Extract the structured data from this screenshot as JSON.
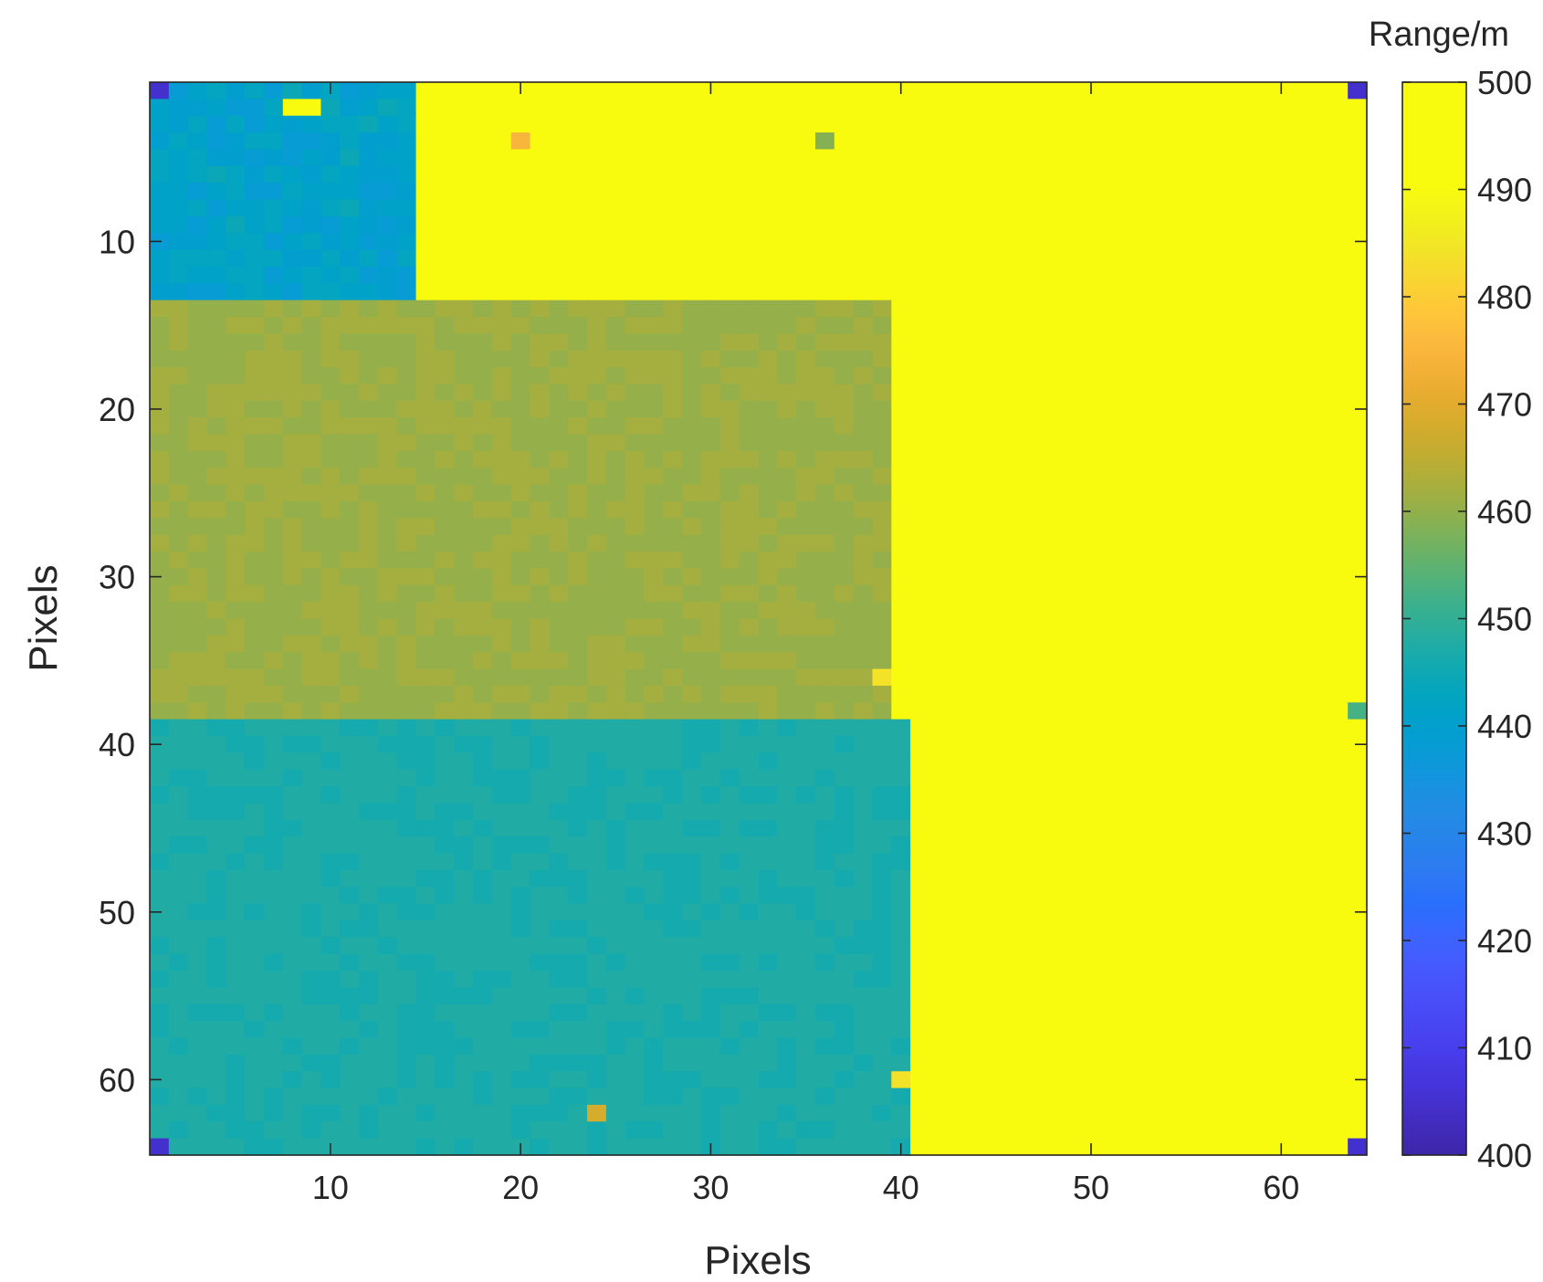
{
  "chart_data": {
    "type": "heatmap",
    "title": "",
    "xlabel": "Pixels",
    "ylabel": "Pixels",
    "xlim": [
      0.5,
      64.5
    ],
    "ylim": [
      0.5,
      64.5
    ],
    "y_reversed": true,
    "x_ticks": [
      10,
      20,
      30,
      40,
      50,
      60
    ],
    "y_ticks": [
      10,
      20,
      30,
      40,
      50,
      60
    ],
    "colorbar": {
      "title": "Range/m",
      "limits": [
        400,
        500
      ],
      "ticks": [
        400,
        410,
        420,
        430,
        440,
        450,
        460,
        470,
        480,
        490,
        500
      ],
      "colormap": "parula"
    },
    "grid": false,
    "description_of_regions": [
      {
        "region": "columns 1-40, rows 15-38",
        "value_m": 461
      },
      {
        "region": "columns 1-41, rows 39-64",
        "value_m": 447
      },
      {
        "region": "columns 41-64, all rows",
        "value_m": 497
      },
      {
        "region": "columns 1-14, rows 1-13",
        "value_m": 441
      },
      {
        "region": "columns 15-40, rows 1-13",
        "value_m": 497
      }
    ],
    "spot_values": [
      {
        "x": 1,
        "y": 1,
        "value_m": 404
      },
      {
        "x": 64,
        "y": 1,
        "value_m": 404
      },
      {
        "x": 1,
        "y": 64,
        "value_m": 404
      },
      {
        "x": 64,
        "y": 64,
        "value_m": 404
      },
      {
        "x": 8,
        "y": 2,
        "value_m": 493
      },
      {
        "x": 9,
        "y": 2,
        "value_m": 493
      },
      {
        "x": 20,
        "y": 4,
        "value_m": 474
      },
      {
        "x": 36,
        "y": 4,
        "value_m": 458
      },
      {
        "x": 39,
        "y": 36,
        "value_m": 484
      },
      {
        "x": 40,
        "y": 60,
        "value_m": 484
      },
      {
        "x": 64,
        "y": 38,
        "value_m": 452
      },
      {
        "x": 24,
        "y": 62,
        "value_m": 468
      }
    ]
  }
}
